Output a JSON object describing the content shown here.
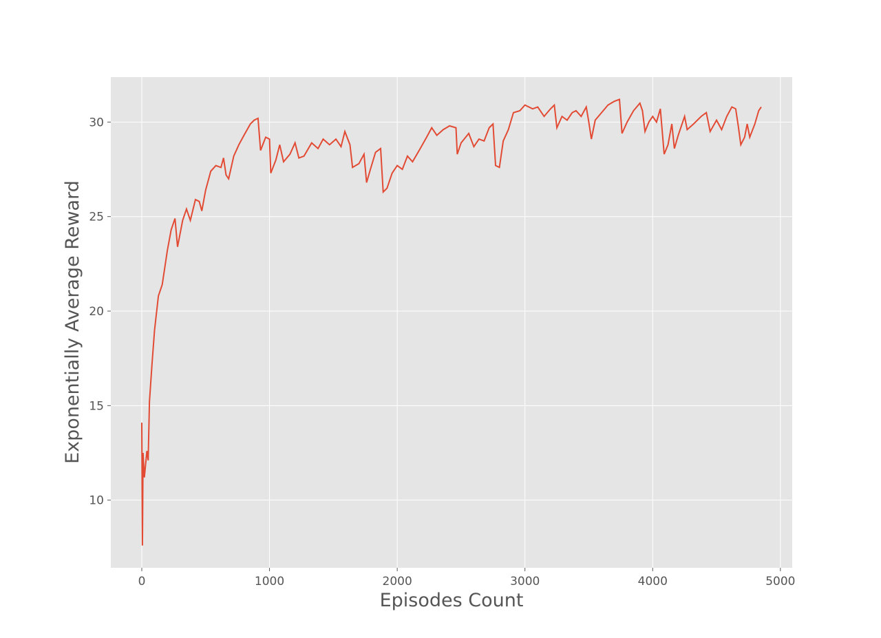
{
  "chart_data": {
    "type": "line",
    "x_label": "Episodes Count",
    "y_label": "Exponentially Average Reward",
    "x": [
      0,
      5,
      10,
      20,
      40,
      50,
      60,
      80,
      100,
      130,
      160,
      200,
      230,
      260,
      280,
      320,
      350,
      380,
      420,
      450,
      470,
      500,
      540,
      580,
      620,
      640,
      660,
      680,
      720,
      760,
      800,
      850,
      880,
      910,
      930,
      970,
      1000,
      1010,
      1050,
      1080,
      1110,
      1160,
      1200,
      1230,
      1270,
      1330,
      1380,
      1420,
      1470,
      1520,
      1560,
      1590,
      1630,
      1650,
      1700,
      1740,
      1760,
      1790,
      1830,
      1870,
      1890,
      1920,
      1960,
      2000,
      2040,
      2080,
      2120,
      2180,
      2230,
      2270,
      2310,
      2360,
      2410,
      2460,
      2470,
      2500,
      2560,
      2600,
      2640,
      2680,
      2720,
      2750,
      2770,
      2800,
      2830,
      2870,
      2910,
      2960,
      3000,
      3060,
      3100,
      3150,
      3200,
      3230,
      3250,
      3290,
      3330,
      3370,
      3400,
      3440,
      3480,
      3500,
      3520,
      3550,
      3600,
      3650,
      3700,
      3740,
      3760,
      3800,
      3850,
      3900,
      3920,
      3940,
      3970,
      4000,
      4030,
      4060,
      4090,
      4120,
      4150,
      4170,
      4200,
      4250,
      4270,
      4320,
      4380,
      4420,
      4450,
      4500,
      4540,
      4580,
      4620,
      4650,
      4670,
      4690,
      4720,
      4740,
      4760,
      4800,
      4830,
      4850
    ],
    "series": [
      {
        "color": "#E24A33",
        "values": [
          14.1,
          7.6,
          12.5,
          11.2,
          12.6,
          12.1,
          15.2,
          17.2,
          19,
          20.8,
          21.4,
          23.2,
          24.3,
          24.9,
          23.4,
          24.8,
          25.4,
          24.8,
          25.9,
          25.8,
          25.3,
          26.4,
          27.4,
          27.7,
          27.6,
          28.1,
          27.2,
          27.0,
          28.2,
          28.8,
          29.3,
          29.9,
          30.1,
          30.2,
          28.5,
          29.2,
          29.1,
          27.3,
          28.0,
          28.8,
          27.9,
          28.3,
          28.9,
          28.1,
          28.2,
          28.9,
          28.6,
          29.1,
          28.8,
          29.1,
          28.7,
          29.5,
          28.8,
          27.6,
          27.8,
          28.3,
          26.8,
          27.5,
          28.4,
          28.6,
          26.3,
          26.5,
          27.3,
          27.7,
          27.5,
          28.2,
          27.9,
          28.6,
          29.2,
          29.7,
          29.3,
          29.6,
          29.8,
          29.7,
          28.3,
          28.9,
          29.4,
          28.7,
          29.1,
          29.0,
          29.7,
          29.9,
          27.7,
          27.6,
          29.0,
          29.6,
          30.5,
          30.6,
          30.9,
          30.7,
          30.8,
          30.3,
          30.7,
          30.9,
          29.7,
          30.3,
          30.1,
          30.5,
          30.6,
          30.3,
          30.8,
          30.0,
          29.1,
          30.1,
          30.5,
          30.9,
          31.1,
          31.2,
          29.4,
          30.0,
          30.6,
          31.0,
          30.6,
          29.5,
          30.0,
          30.3,
          30.0,
          30.7,
          28.3,
          28.8,
          29.9,
          28.6,
          29.3,
          30.3,
          29.6,
          29.9,
          30.3,
          30.5,
          29.5,
          30.1,
          29.6,
          30.3,
          30.8,
          30.7,
          29.8,
          28.8,
          29.2,
          29.9,
          29.2,
          29.9,
          30.6,
          30.8
        ]
      }
    ],
    "xlim": [
      -242.5,
      5092.5
    ],
    "ylim": [
      6.42,
      32.38
    ],
    "xticks": [
      0,
      1000,
      2000,
      3000,
      4000,
      5000
    ],
    "yticks": [
      10,
      15,
      20,
      25,
      30
    ],
    "grid": true
  }
}
